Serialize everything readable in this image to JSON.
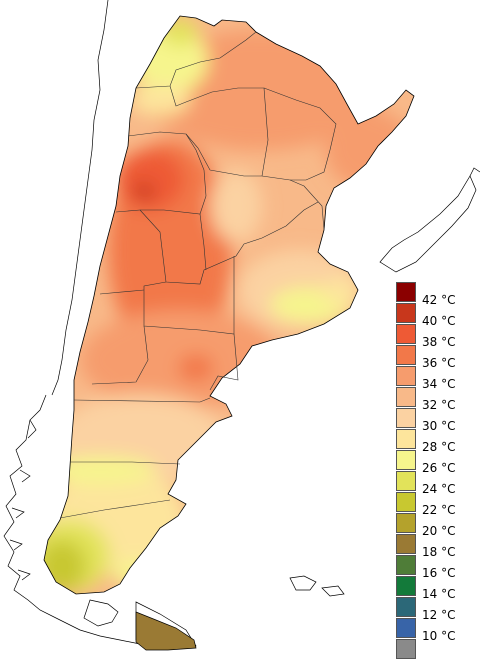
{
  "legend": {
    "entries": [
      {
        "label": "42 °C",
        "color": "#8b0000"
      },
      {
        "label": "40 °C",
        "color": "#c8371c"
      },
      {
        "label": "38 °C",
        "color": "#ee5a35"
      },
      {
        "label": "36 °C",
        "color": "#f27849"
      },
      {
        "label": "34 °C",
        "color": "#f69c6d"
      },
      {
        "label": "32 °C",
        "color": "#f8b989"
      },
      {
        "label": "30 °C",
        "color": "#fbd2a2"
      },
      {
        "label": "28 °C",
        "color": "#fde59c"
      },
      {
        "label": "26 °C",
        "color": "#f6f58d"
      },
      {
        "label": "24 °C",
        "color": "#e2e35a"
      },
      {
        "label": "22 °C",
        "color": "#c8c830"
      },
      {
        "label": "20 °C",
        "color": "#b4a22c"
      },
      {
        "label": "18 °C",
        "color": "#9a7a34"
      },
      {
        "label": "16 °C",
        "color": "#4f7d38"
      },
      {
        "label": "14 °C",
        "color": "#137a3a"
      },
      {
        "label": "12 °C",
        "color": "#2c6878"
      },
      {
        "label": "10 °C",
        "color": "#3864a8"
      },
      {
        "label": "",
        "color": "#8a8a8a"
      }
    ]
  },
  "map": {
    "colors": {
      "base": "#f8b989",
      "warm": "#f69c6d",
      "hot": "#f27849",
      "hottest": "#ee5a35",
      "mild": "#fbd2a2",
      "cool": "#fde59c",
      "cooler": "#f6f58d",
      "cold": "#e2e35a",
      "colder": "#c8c830",
      "coldest": "#9a7a34",
      "outline": "#000000",
      "province_line": "#333333"
    }
  }
}
